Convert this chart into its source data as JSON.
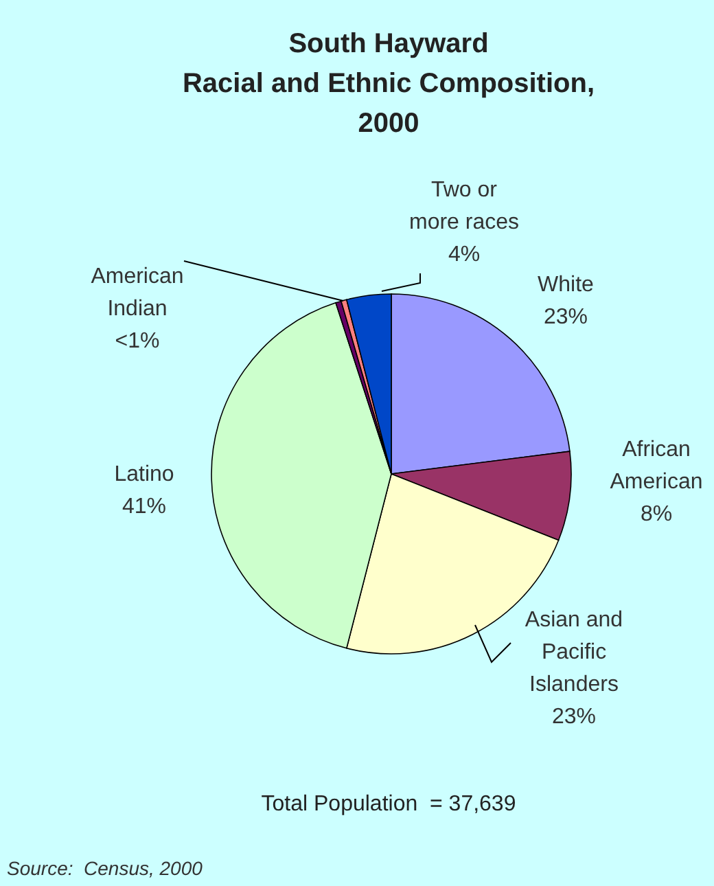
{
  "chart_data": {
    "type": "pie",
    "title": "South Hayward",
    "subtitle": "Racial and Ethnic Composition, 2000",
    "categories": [
      "White",
      "African American",
      "Asian and Pacific Islanders",
      "Latino",
      null,
      "American Indian",
      "Two or more races"
    ],
    "values": [
      23,
      8,
      23,
      41,
      0.5,
      0.5,
      4
    ],
    "value_labels": [
      "23%",
      "8%",
      "23%",
      "41%",
      null,
      "<1%",
      "4%"
    ],
    "colors": [
      "#9999ff",
      "#993366",
      "#ffffcc",
      "#ccffcc",
      "#660066",
      "#ff8080",
      "#0047c8"
    ],
    "annotations": [
      "Total Population  = 37,639",
      "Source:  Census, 2000"
    ]
  }
}
